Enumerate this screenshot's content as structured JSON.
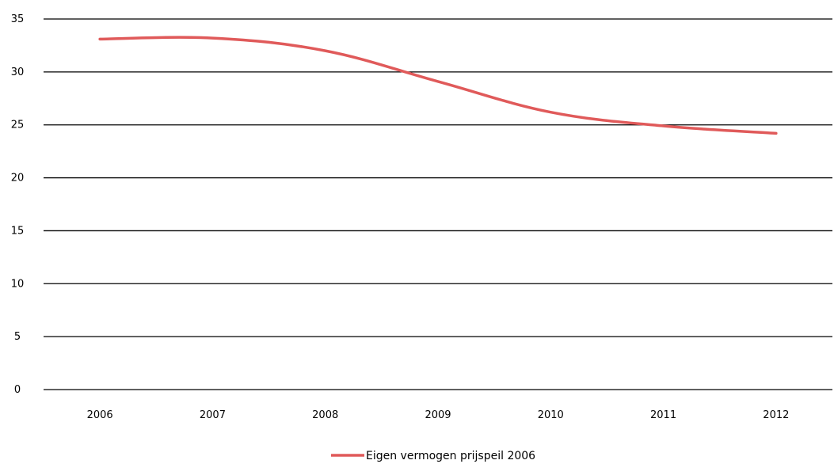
{
  "chart_data": {
    "type": "line",
    "title": "",
    "xlabel": "",
    "ylabel": "",
    "categories": [
      "2006",
      "2007",
      "2008",
      "2009",
      "2010",
      "2011",
      "2012"
    ],
    "ylim": [
      0,
      35
    ],
    "yticks": [
      0,
      5,
      10,
      15,
      20,
      25,
      30,
      35
    ],
    "grid": true,
    "legend_position": "bottom",
    "series": [
      {
        "name": "Eigen vermogen prijspeil 2006",
        "color": "#e05a5a",
        "values": [
          33.1,
          33.2,
          32.0,
          29.1,
          26.2,
          24.9,
          24.2
        ]
      }
    ]
  }
}
